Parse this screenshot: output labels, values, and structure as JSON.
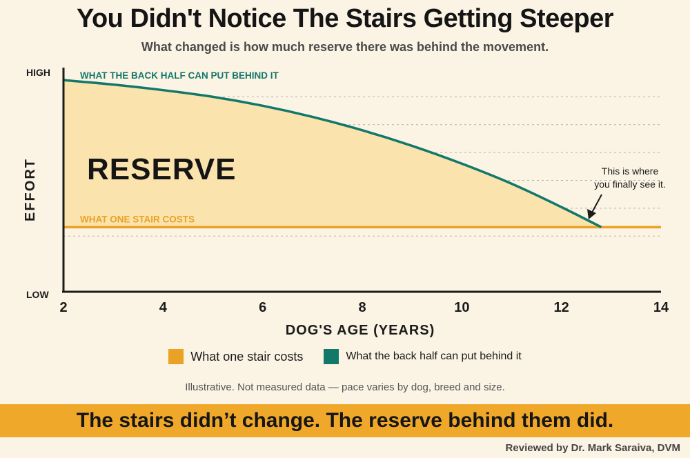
{
  "header": {
    "title": "You Didn't Notice The Stairs Getting Steeper",
    "subtitle": "What changed is how much reserve there was behind the movement."
  },
  "chart_data": {
    "type": "area",
    "xlabel": "DOG'S AGE (YEARS)",
    "ylabel": "EFFORT",
    "xlim": [
      2,
      14
    ],
    "ylim": [
      0,
      100
    ],
    "x_ticks": [
      "2",
      "4",
      "6",
      "8",
      "10",
      "12",
      "14"
    ],
    "y_tick_labels": {
      "high": "HIGH",
      "low": "LOW"
    },
    "grid": "horizontal-dashed",
    "series": [
      {
        "name": "What one stair costs",
        "color": "#e9a224",
        "label": "WHAT ONE STAIR COSTS",
        "x": [
          2,
          14
        ],
        "y": [
          29,
          29
        ]
      },
      {
        "name": "What the back half can put behind it",
        "color": "#12786a",
        "label": "WHAT THE BACK HALF CAN PUT BEHIND IT",
        "x": [
          2,
          3,
          4,
          5,
          6,
          7,
          8,
          9,
          10,
          11,
          12,
          12.8
        ],
        "y": [
          95,
          93,
          90.5,
          87.5,
          83.5,
          78.5,
          72.5,
          65.5,
          57.5,
          48.5,
          38,
          29
        ]
      }
    ],
    "fill_between": {
      "label": "RESERVE",
      "color": "#fbe3ad"
    },
    "annotation": {
      "lines": [
        "This is where",
        "you finally see it."
      ],
      "point": [
        12.8,
        29
      ]
    }
  },
  "legend": {
    "items": [
      {
        "label": "What one stair costs",
        "color": "#e9a224"
      },
      {
        "label": "What the back half can put behind it",
        "color": "#12786a"
      }
    ]
  },
  "note": "Illustrative. Not measured data — pace varies by dog, breed and size.",
  "banner": {
    "text": "The stairs didn’t change. The reserve behind them did.",
    "color": "#f0a82a"
  },
  "footer": {
    "reviewed": "Reviewed by Dr. Mark Saraiva,  DVM"
  }
}
